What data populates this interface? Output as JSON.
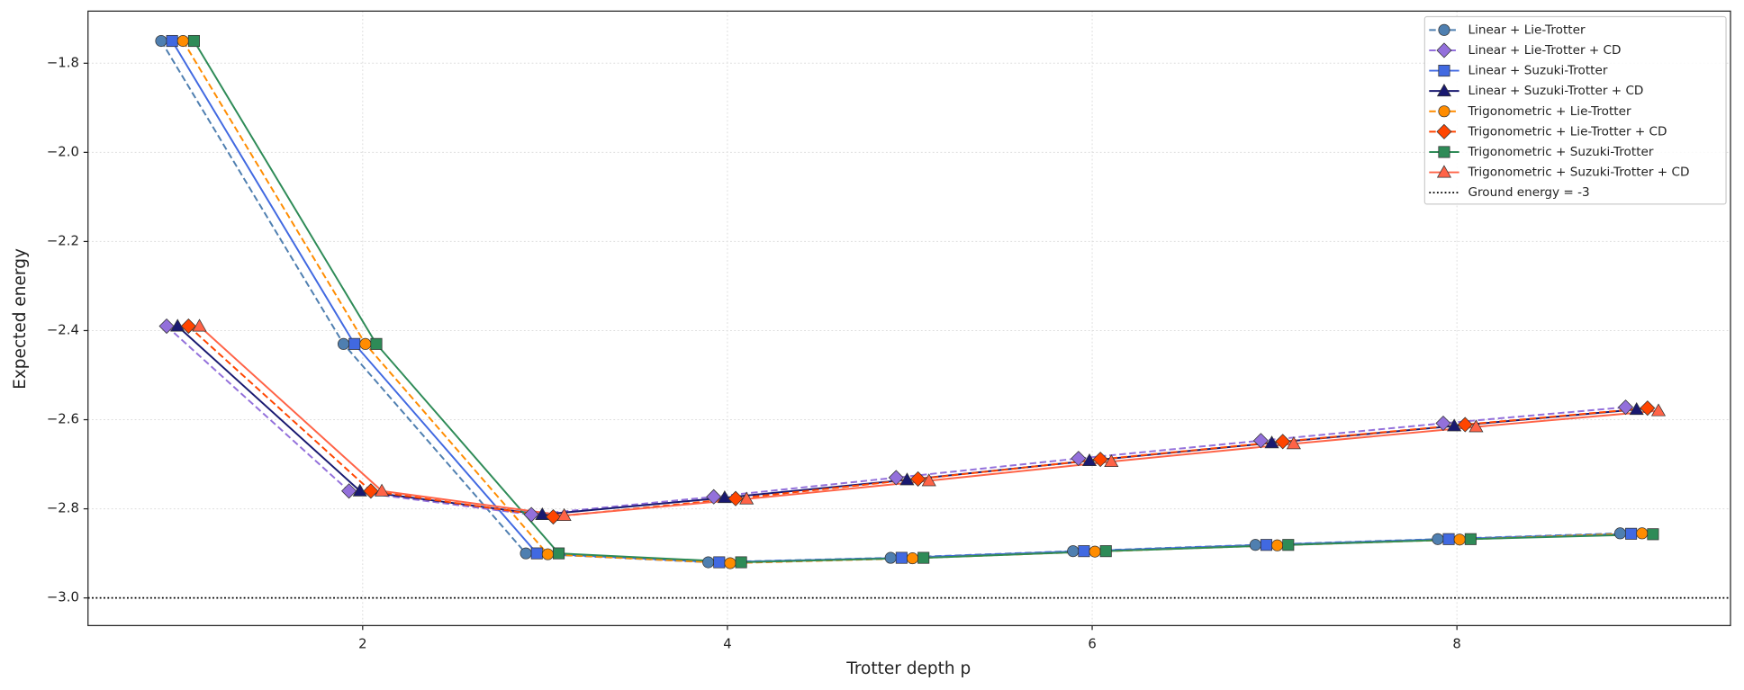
{
  "chart_data": {
    "type": "line",
    "xlabel": "Trotter depth p",
    "ylabel": "Expected energy",
    "xlim": [
      0.494,
      9.5
    ],
    "ylim": [
      -3.062,
      -1.683
    ],
    "xticks": [
      2,
      4,
      6,
      8
    ],
    "yticks": [
      {
        "value": -3.0,
        "label": "−3.0"
      },
      {
        "value": -2.8,
        "label": "−2.8"
      },
      {
        "value": -2.6,
        "label": "−2.6"
      },
      {
        "value": -2.4,
        "label": "−2.4"
      },
      {
        "value": -2.2,
        "label": "−2.2"
      },
      {
        "value": -2.0,
        "label": "−2.0"
      },
      {
        "value": -1.8,
        "label": "−1.8"
      }
    ],
    "grid": true,
    "legend": "upper right",
    "series": [
      {
        "name": "Linear + Lie-Trotter",
        "color": "#4f7fb0",
        "marker": "circle",
        "linestyle": "dashed",
        "x": [
          0.895,
          1.895,
          2.895,
          3.895,
          4.895,
          5.895,
          6.895,
          7.895,
          8.895
        ],
        "values": [
          -1.75,
          -2.43,
          -2.9,
          -2.92,
          -2.91,
          -2.895,
          -2.881,
          -2.868,
          -2.855
        ]
      },
      {
        "name": "Linear + Lie-Trotter + CD",
        "color": "#9370db",
        "marker": "diamond",
        "linestyle": "dashed",
        "x": [
          0.925,
          1.925,
          2.925,
          3.925,
          4.925,
          5.925,
          6.925,
          7.925,
          8.925
        ],
        "values": [
          -2.39,
          -2.76,
          -2.813,
          -2.773,
          -2.73,
          -2.687,
          -2.647,
          -2.608,
          -2.572
        ]
      },
      {
        "name": "Linear + Suzuki-Trotter",
        "color": "#4169e1",
        "marker": "square",
        "linestyle": "solid",
        "x": [
          0.955,
          1.955,
          2.955,
          3.955,
          4.955,
          5.955,
          6.955,
          7.955,
          8.955
        ],
        "values": [
          -1.75,
          -2.43,
          -2.9,
          -2.92,
          -2.91,
          -2.895,
          -2.881,
          -2.868,
          -2.856
        ]
      },
      {
        "name": "Linear + Suzuki-Trotter + CD",
        "color": "#191970",
        "marker": "triangle",
        "linestyle": "solid",
        "x": [
          0.985,
          1.985,
          2.985,
          3.985,
          4.985,
          5.985,
          6.985,
          7.985,
          8.985
        ],
        "values": [
          -2.39,
          -2.76,
          -2.813,
          -2.775,
          -2.735,
          -2.692,
          -2.652,
          -2.614,
          -2.577
        ]
      },
      {
        "name": "Trigonometric + Lie-Trotter",
        "color": "#ff8c00",
        "marker": "circle",
        "linestyle": "dashed",
        "x": [
          1.015,
          2.015,
          3.015,
          4.015,
          5.015,
          6.015,
          7.015,
          8.015,
          9.015
        ],
        "values": [
          -1.75,
          -2.43,
          -2.902,
          -2.922,
          -2.911,
          -2.896,
          -2.882,
          -2.869,
          -2.855
        ]
      },
      {
        "name": "Trigonometric + Lie-Trotter + CD",
        "color": "#ff4500",
        "marker": "diamond",
        "linestyle": "dashed",
        "x": [
          1.045,
          2.045,
          3.045,
          4.045,
          5.045,
          6.045,
          7.045,
          8.045,
          9.045
        ],
        "values": [
          -2.39,
          -2.76,
          -2.818,
          -2.777,
          -2.733,
          -2.689,
          -2.649,
          -2.611,
          -2.574
        ]
      },
      {
        "name": "Trigonometric + Suzuki-Trotter",
        "color": "#2e8b57",
        "marker": "square",
        "linestyle": "solid",
        "x": [
          1.075,
          2.075,
          3.075,
          4.075,
          5.075,
          6.075,
          7.075,
          8.075,
          9.075
        ],
        "values": [
          -1.75,
          -2.43,
          -2.9,
          -2.92,
          -2.91,
          -2.895,
          -2.881,
          -2.868,
          -2.857
        ]
      },
      {
        "name": "Trigonometric + Suzuki-Trotter + CD",
        "color": "#ff6347",
        "marker": "triangle",
        "linestyle": "solid",
        "x": [
          1.105,
          2.105,
          3.105,
          4.105,
          5.105,
          6.105,
          7.105,
          8.105,
          9.105
        ],
        "values": [
          -2.39,
          -2.76,
          -2.815,
          -2.778,
          -2.737,
          -2.694,
          -2.654,
          -2.616,
          -2.58
        ]
      }
    ],
    "hline": {
      "value": -3,
      "label": "Ground energy = -3",
      "color": "#000000",
      "linestyle": "dotted"
    }
  }
}
